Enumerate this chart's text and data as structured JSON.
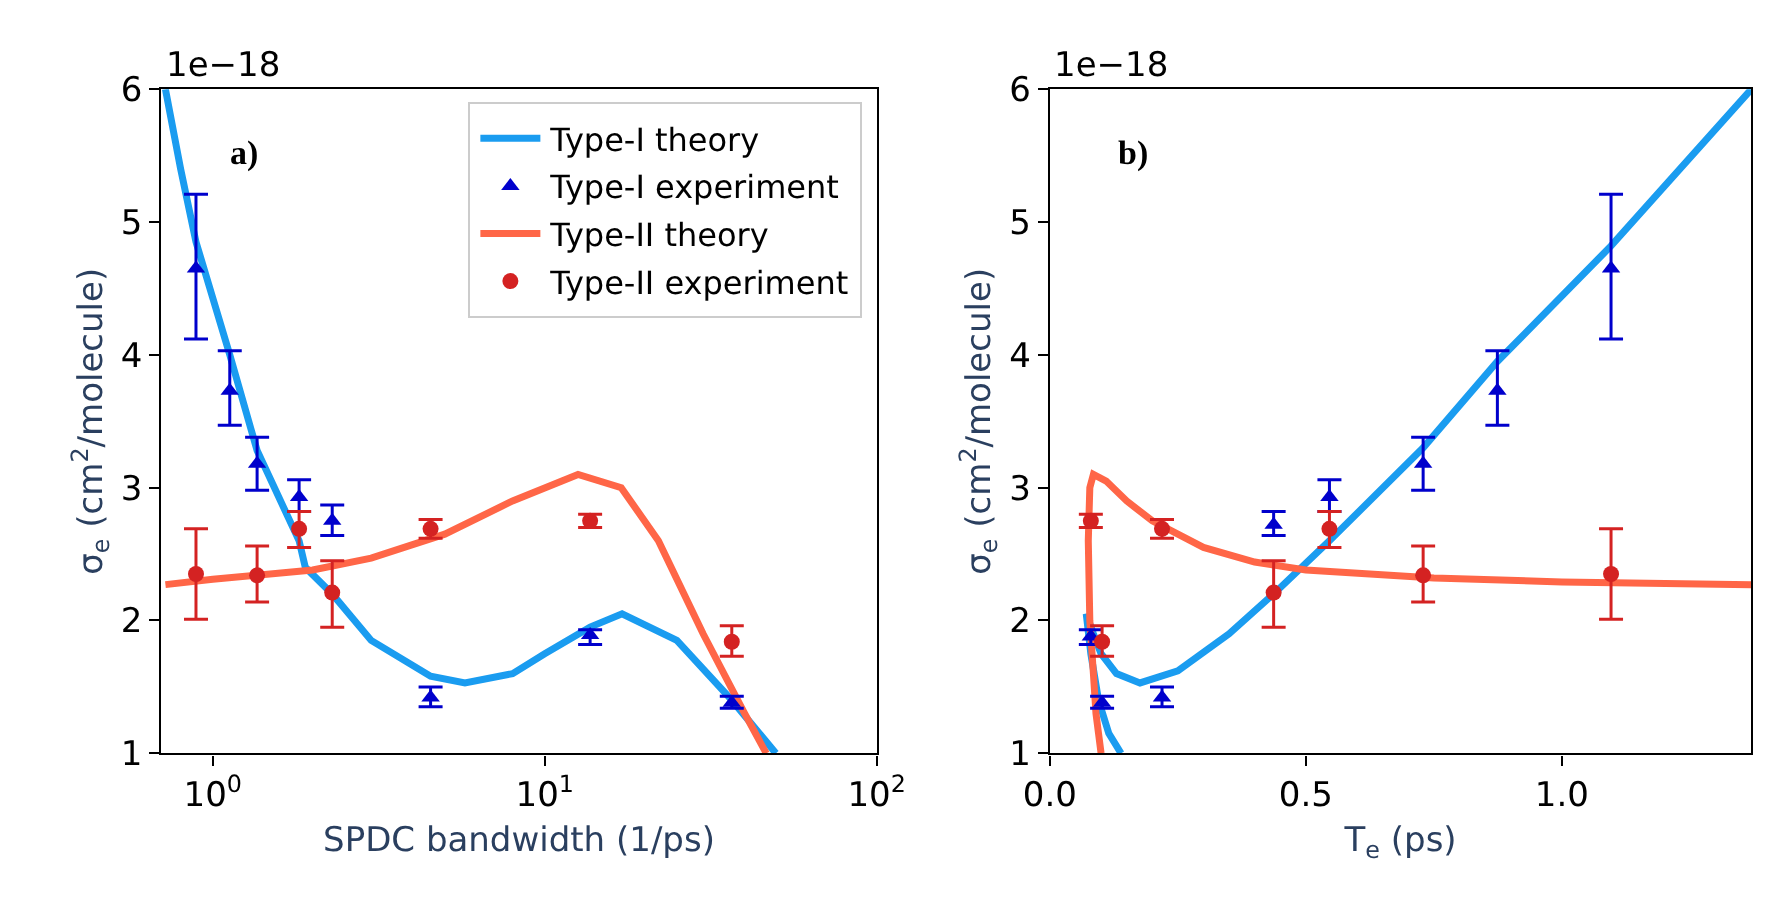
{
  "chart_data": [
    {
      "type": "line",
      "xlabel": "SPDC bandwidth (1/ps)",
      "ylabel": "σ$_{e}$ (cm$^{2}$/molecule)",
      "log": "x",
      "grid": false,
      "legend": "top right",
      "xlim": [
        0.7,
        100
      ],
      "xticks": [
        {
          "value": 1,
          "label": "10$^{0}$"
        },
        {
          "value": 10,
          "label": "10$^{1}$"
        },
        {
          "value": 100,
          "label": "10$^{2}$"
        }
      ],
      "ylim": [
        1,
        6
      ],
      "yticks": [
        1,
        2,
        3,
        4,
        5,
        6
      ],
      "annotations": [
        "1e−18",
        "a)"
      ],
      "series": [
        {
          "name": "Type-I theory",
          "color": "#1a9cf0",
          "marker": "none",
          "line_style": "solid",
          "x": [
            0.72,
            0.8,
            0.89,
            1.125,
            1.36,
            1.82,
            1.9,
            2.29,
            3,
            4.53,
            5.75,
            8,
            10,
            13.7,
            17.1,
            25,
            36.6,
            49.7
          ],
          "values": [
            6.0,
            5.4,
            4.85,
            4.0,
            3.28,
            2.6,
            2.4,
            2.2,
            1.85,
            1.58,
            1.53,
            1.6,
            1.75,
            1.95,
            2.05,
            1.85,
            1.4,
            1.0
          ]
        },
        {
          "name": "Type-I experiment",
          "type": "scatter",
          "color": "#0000cc",
          "marker": "triangle",
          "x": [
            0.89,
            1.125,
            1.36,
            1.82,
            2.29,
            4.53,
            13.7,
            36.6
          ],
          "values": [
            4.65,
            3.73,
            3.18,
            2.93,
            2.75,
            1.42,
            1.89,
            1.38
          ],
          "errors": [
            [
              4.12,
              5.21
            ],
            [
              3.47,
              4.03
            ],
            [
              2.98,
              3.38
            ],
            [
              2.82,
              3.06
            ],
            [
              2.64,
              2.87
            ],
            [
              1.35,
              1.5
            ],
            [
              1.82,
              1.93
            ],
            [
              1.34,
              1.43
            ]
          ]
        },
        {
          "name": "Type-II theory",
          "color": "#ff6647",
          "marker": "none",
          "line_style": "solid",
          "x": [
            0.72,
            1,
            2,
            3,
            5,
            8,
            12.6,
            17,
            22,
            30,
            40,
            46.5
          ],
          "values": [
            2.27,
            2.31,
            2.38,
            2.47,
            2.65,
            2.9,
            3.1,
            3.0,
            2.6,
            1.9,
            1.3,
            1.0
          ]
        },
        {
          "name": "Type-II experiment",
          "type": "scatter",
          "color": "#d42222",
          "marker": "circle",
          "x": [
            0.89,
            1.36,
            1.82,
            2.29,
            4.53,
            13.7,
            36.6
          ],
          "values": [
            2.35,
            2.34,
            2.69,
            2.21,
            2.69,
            2.75,
            1.84
          ],
          "errors": [
            [
              2.01,
              2.69
            ],
            [
              2.14,
              2.56
            ],
            [
              2.55,
              2.82
            ],
            [
              1.95,
              2.45
            ],
            [
              2.62,
              2.76
            ],
            [
              2.7,
              2.8
            ],
            [
              1.73,
              1.96
            ]
          ]
        }
      ]
    },
    {
      "type": "line",
      "xlabel": "T$_{e}$ (ps)",
      "ylabel": "σ$_{e}$ (cm$^{2}$/molecule)",
      "grid": false,
      "legend": false,
      "xlim": [
        0,
        1.37
      ],
      "xticks": [
        {
          "value": 0,
          "label": "0.0"
        },
        0.5,
        {
          "value": 1,
          "label": "1.0"
        }
      ],
      "ylim": [
        1,
        6
      ],
      "yticks": [
        1,
        2,
        3,
        4,
        5,
        6
      ],
      "annotations": [
        "1e−18",
        "b)"
      ],
      "series": [
        {
          "color": "#1a9cf0",
          "marker": "none",
          "line_style": "solid",
          "x": [
            1.37,
            1.096,
            0.874,
            0.729,
            0.546,
            0.437,
            0.35,
            0.25,
            0.176,
            0.13,
            0.1,
            0.085,
            0.071,
            0.08,
            0.095,
            0.115,
            0.139
          ],
          "values": [
            6.0,
            4.82,
            3.95,
            3.3,
            2.6,
            2.2,
            1.9,
            1.62,
            1.53,
            1.6,
            1.75,
            1.9,
            2.05,
            1.75,
            1.4,
            1.15,
            1.0
          ]
        },
        {
          "type": "scatter",
          "color": "#0000cc",
          "marker": "triangle",
          "x": [
            1.096,
            0.874,
            0.729,
            0.546,
            0.437,
            0.219,
            0.102,
            0.08
          ],
          "values": [
            4.65,
            3.73,
            3.18,
            2.93,
            2.72,
            1.42,
            1.38,
            1.88
          ],
          "errors": [
            [
              4.12,
              5.21
            ],
            [
              3.47,
              4.03
            ],
            [
              2.98,
              3.38
            ],
            [
              2.82,
              3.06
            ],
            [
              2.64,
              2.82
            ],
            [
              1.35,
              1.5
            ],
            [
              1.34,
              1.43
            ],
            [
              1.82,
              1.93
            ]
          ]
        },
        {
          "color": "#ff6647",
          "marker": "none",
          "line_style": "solid",
          "x": [
            1.37,
            1.0,
            0.75,
            0.5,
            0.4,
            0.3,
            0.2,
            0.15,
            0.11,
            0.085,
            0.078,
            0.075,
            0.078,
            0.085,
            0.09,
            0.095,
            0.1
          ],
          "values": [
            2.27,
            2.29,
            2.32,
            2.38,
            2.44,
            2.55,
            2.75,
            2.9,
            3.05,
            3.1,
            3.0,
            2.6,
            2.0,
            1.6,
            1.3,
            1.15,
            1.0
          ]
        },
        {
          "type": "scatter",
          "color": "#d42222",
          "marker": "circle",
          "x": [
            1.096,
            0.729,
            0.546,
            0.437,
            0.219,
            0.102,
            0.08
          ],
          "values": [
            2.35,
            2.34,
            2.69,
            2.21,
            2.69,
            1.84,
            2.75
          ],
          "errors": [
            [
              2.01,
              2.69
            ],
            [
              2.14,
              2.56
            ],
            [
              2.55,
              2.82
            ],
            [
              1.95,
              2.45
            ],
            [
              2.62,
              2.76
            ],
            [
              1.73,
              1.96
            ],
            [
              2.7,
              2.8
            ]
          ]
        }
      ]
    }
  ]
}
